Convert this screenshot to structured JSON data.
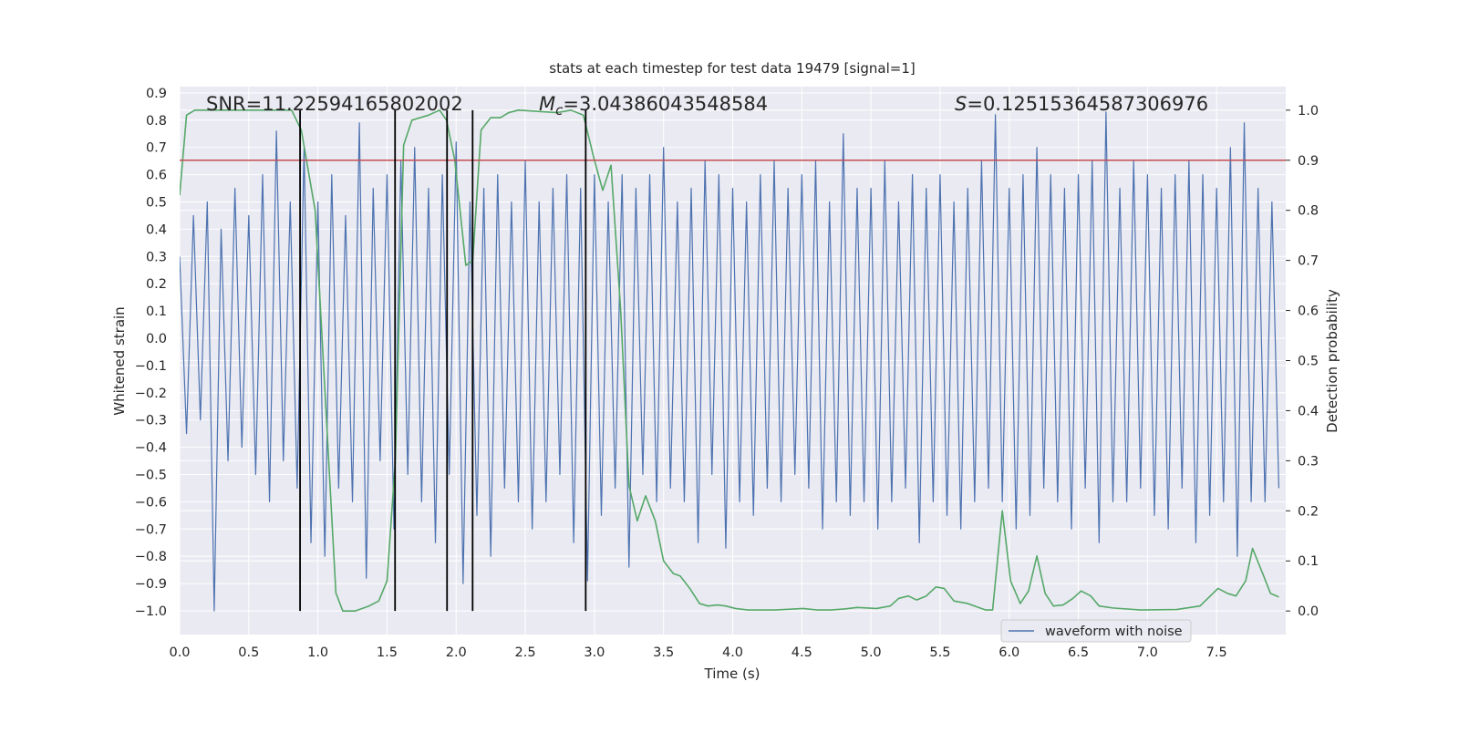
{
  "chart_data": {
    "type": "line",
    "title": "stats at each timestep for test data 19479 [signal=1]",
    "xlabel": "Time (s)",
    "ylabel": "Whitened strain",
    "y2label": "Detection probability",
    "xlim": [
      0,
      8
    ],
    "ylim": [
      -1.087,
      0.923
    ],
    "y2lim": [
      -0.047,
      1.047
    ],
    "xticks": [
      {
        "value": 0,
        "label": "0.0"
      },
      0.5,
      {
        "value": 1,
        "label": "1.0"
      },
      1.5,
      {
        "value": 2,
        "label": "2.0"
      },
      2.5,
      {
        "value": 3,
        "label": "3.0"
      },
      3.5,
      {
        "value": 4,
        "label": "4.0"
      },
      4.5,
      {
        "value": 5,
        "label": "5.0"
      },
      5.5,
      {
        "value": 6,
        "label": "6.0"
      },
      6.5,
      {
        "value": 7,
        "label": "7.0"
      },
      7.5
    ],
    "yticks": [
      {
        "value": -1,
        "label": "−1.0"
      },
      {
        "value": -0.9,
        "label": "−0.9"
      },
      {
        "value": -0.8,
        "label": "−0.8"
      },
      {
        "value": -0.7,
        "label": "−0.7"
      },
      {
        "value": -0.6,
        "label": "−0.6"
      },
      {
        "value": -0.5,
        "label": "−0.5"
      },
      {
        "value": -0.4,
        "label": "−0.4"
      },
      {
        "value": -0.3,
        "label": "−0.3"
      },
      {
        "value": -0.2,
        "label": "−0.2"
      },
      {
        "value": -0.1,
        "label": "−0.1"
      },
      {
        "value": 0,
        "label": "0.0"
      },
      0.1,
      0.2,
      0.3,
      0.4,
      0.5,
      0.6,
      0.7,
      0.8,
      0.9
    ],
    "y2ticks": [
      {
        "value": 0,
        "label": "0.0"
      },
      0.1,
      0.2,
      0.3,
      0.4,
      0.5,
      0.6,
      0.7,
      0.8,
      0.9,
      {
        "value": 1,
        "label": "1.0"
      }
    ],
    "grid": true,
    "legend": "lower right",
    "annotations": [
      {
        "text": "SNR=11.22594165802002"
      },
      {
        "symbol": "M",
        "subscript": "c",
        "text": "=3.04386043548584"
      },
      {
        "symbol": "S",
        "text": "=0.12515364587306976"
      }
    ],
    "series": [
      {
        "name": "waveform with noise",
        "color": "#4c72b0",
        "x": [
          0,
          0.05,
          0.1,
          0.15,
          0.2,
          0.25,
          0.3,
          0.35,
          0.4,
          0.45,
          0.5,
          0.55,
          0.6,
          0.65,
          0.7,
          0.75,
          0.8,
          0.85,
          0.9,
          0.95,
          1,
          1.05,
          1.1,
          1.15,
          1.2,
          1.25,
          1.3,
          1.35,
          1.4,
          1.45,
          1.5,
          1.55,
          1.6,
          1.65,
          1.7,
          1.75,
          1.8,
          1.85,
          1.9,
          1.95,
          2,
          2.05,
          2.1,
          2.15,
          2.2,
          2.25,
          2.3,
          2.35,
          2.4,
          2.45,
          2.5,
          2.55,
          2.6,
          2.65,
          2.7,
          2.75,
          2.8,
          2.85,
          2.9,
          2.95,
          3,
          3.05,
          3.1,
          3.15,
          3.2,
          3.25,
          3.3,
          3.35,
          3.4,
          3.45,
          3.5,
          3.55,
          3.6,
          3.65,
          3.7,
          3.75,
          3.8,
          3.85,
          3.9,
          3.95,
          4,
          4.05,
          4.1,
          4.15,
          4.2,
          4.25,
          4.3,
          4.35,
          4.4,
          4.45,
          4.5,
          4.55,
          4.6,
          4.65,
          4.7,
          4.75,
          4.8,
          4.85,
          4.9,
          4.95,
          5,
          5.05,
          5.1,
          5.15,
          5.2,
          5.25,
          5.3,
          5.35,
          5.4,
          5.45,
          5.5,
          5.55,
          5.6,
          5.65,
          5.7,
          5.75,
          5.8,
          5.85,
          5.9,
          5.95,
          6,
          6.05,
          6.1,
          6.15,
          6.2,
          6.25,
          6.3,
          6.35,
          6.4,
          6.45,
          6.5,
          6.55,
          6.6,
          6.65,
          6.7,
          6.75,
          6.8,
          6.85,
          6.9,
          6.95,
          7,
          7.05,
          7.1,
          7.15,
          7.2,
          7.25,
          7.3,
          7.35,
          7.4,
          7.45,
          7.5,
          7.55,
          7.6,
          7.65,
          7.7,
          7.75,
          7.8,
          7.85,
          7.9,
          7.95
        ],
        "values": [
          0.3,
          -0.35,
          0.45,
          -0.3,
          0.5,
          -1.0,
          0.4,
          -0.45,
          0.55,
          -0.4,
          0.45,
          -0.5,
          0.6,
          -0.6,
          0.76,
          -0.45,
          0.5,
          -0.55,
          0.7,
          -0.75,
          0.5,
          -0.8,
          0.6,
          -0.55,
          0.45,
          -0.6,
          0.79,
          -0.88,
          0.55,
          -0.45,
          0.6,
          -0.7,
          0.65,
          -0.5,
          0.7,
          -0.6,
          0.55,
          -0.75,
          0.6,
          -0.5,
          0.72,
          -0.9,
          0.5,
          -0.65,
          0.55,
          -0.8,
          0.6,
          -0.55,
          0.5,
          -0.6,
          0.65,
          -0.7,
          0.5,
          -0.6,
          0.55,
          -0.5,
          0.6,
          -0.75,
          0.55,
          -0.89,
          0.6,
          -0.65,
          0.5,
          -0.55,
          0.6,
          -0.84,
          0.55,
          -0.5,
          0.6,
          -0.6,
          0.7,
          -0.55,
          0.5,
          -0.6,
          0.55,
          -0.75,
          0.65,
          -0.5,
          0.6,
          -0.77,
          0.55,
          -0.6,
          0.5,
          -0.65,
          0.6,
          -0.55,
          0.65,
          -0.6,
          0.55,
          -0.5,
          0.6,
          -0.55,
          0.65,
          -0.7,
          0.5,
          -0.6,
          0.75,
          -0.65,
          0.55,
          -0.6,
          0.55,
          -0.7,
          0.65,
          -0.6,
          0.5,
          -0.55,
          0.6,
          -0.75,
          0.55,
          -0.6,
          0.6,
          -0.65,
          0.5,
          -0.7,
          0.55,
          -0.6,
          0.65,
          -0.55,
          0.82,
          -0.6,
          0.55,
          -0.7,
          0.6,
          -0.65,
          0.7,
          -0.55,
          0.6,
          -0.6,
          0.55,
          -0.7,
          0.6,
          -0.55,
          0.65,
          -0.75,
          0.83,
          -0.6,
          0.55,
          -0.6,
          0.65,
          -0.55,
          0.6,
          -0.65,
          0.55,
          -0.7,
          0.6,
          -0.55,
          0.65,
          -0.75,
          0.6,
          -0.65,
          0.55,
          -0.6,
          0.7,
          -0.8,
          0.79,
          -0.6,
          0.55,
          -0.6,
          0.5,
          -0.55
        ]
      },
      {
        "color": "#55a868",
        "axis": "y2",
        "x": [
          0,
          0.05,
          0.11,
          0.81,
          0.88,
          0.98,
          1.13,
          1.18,
          1.27,
          1.37,
          1.44,
          1.5,
          1.56,
          1.62,
          1.68,
          1.8,
          1.88,
          1.93,
          1.99,
          2.07,
          2.12,
          2.18,
          2.25,
          2.32,
          2.38,
          2.45,
          2.73,
          2.83,
          2.92,
          3.0,
          3.06,
          3.12,
          3.19,
          3.25,
          3.31,
          3.37,
          3.44,
          3.5,
          3.57,
          3.62,
          3.69,
          3.76,
          3.82,
          3.89,
          3.95,
          4.02,
          4.11,
          4.31,
          4.51,
          4.61,
          4.71,
          4.81,
          4.9,
          5.04,
          5.14,
          5.2,
          5.27,
          5.33,
          5.4,
          5.47,
          5.53,
          5.6,
          5.7,
          5.83,
          5.88,
          5.95,
          6.01,
          6.08,
          6.14,
          6.2,
          6.26,
          6.32,
          6.39,
          6.46,
          6.52,
          6.59,
          6.65,
          6.75,
          6.95,
          7.21,
          7.38,
          7.51,
          7.58,
          7.64,
          7.71,
          7.76,
          7.84,
          7.89,
          7.95
        ],
        "values": [
          0.83,
          0.99,
          1.0,
          1.0,
          0.96,
          0.8,
          0.036,
          0.0,
          0.0,
          0.01,
          0.02,
          0.06,
          0.3,
          0.93,
          0.98,
          0.99,
          1.0,
          0.98,
          0.9,
          0.69,
          0.7,
          0.96,
          0.985,
          0.985,
          0.995,
          1.0,
          0.995,
          1.0,
          0.99,
          0.9,
          0.84,
          0.89,
          0.6,
          0.25,
          0.18,
          0.23,
          0.18,
          0.1,
          0.075,
          0.07,
          0.045,
          0.015,
          0.01,
          0.012,
          0.01,
          0.005,
          0.002,
          0.002,
          0.005,
          0.002,
          0.002,
          0.004,
          0.007,
          0.005,
          0.01,
          0.025,
          0.03,
          0.022,
          0.03,
          0.048,
          0.045,
          0.02,
          0.015,
          0.002,
          0.002,
          0.2,
          0.06,
          0.015,
          0.04,
          0.11,
          0.035,
          0.01,
          0.012,
          0.025,
          0.04,
          0.03,
          0.01,
          0.006,
          0.002,
          0.003,
          0.01,
          0.045,
          0.035,
          0.03,
          0.06,
          0.125,
          0.07,
          0.035,
          0.028
        ]
      }
    ],
    "hlines": [
      {
        "value": 0.9,
        "axis": "y2",
        "color": "#c44e52"
      }
    ],
    "vlines": {
      "x": [
        0.871,
        1.558,
        1.934,
        2.119,
        2.937
      ],
      "y2range": [
        0,
        1
      ],
      "color": "#000000"
    }
  }
}
